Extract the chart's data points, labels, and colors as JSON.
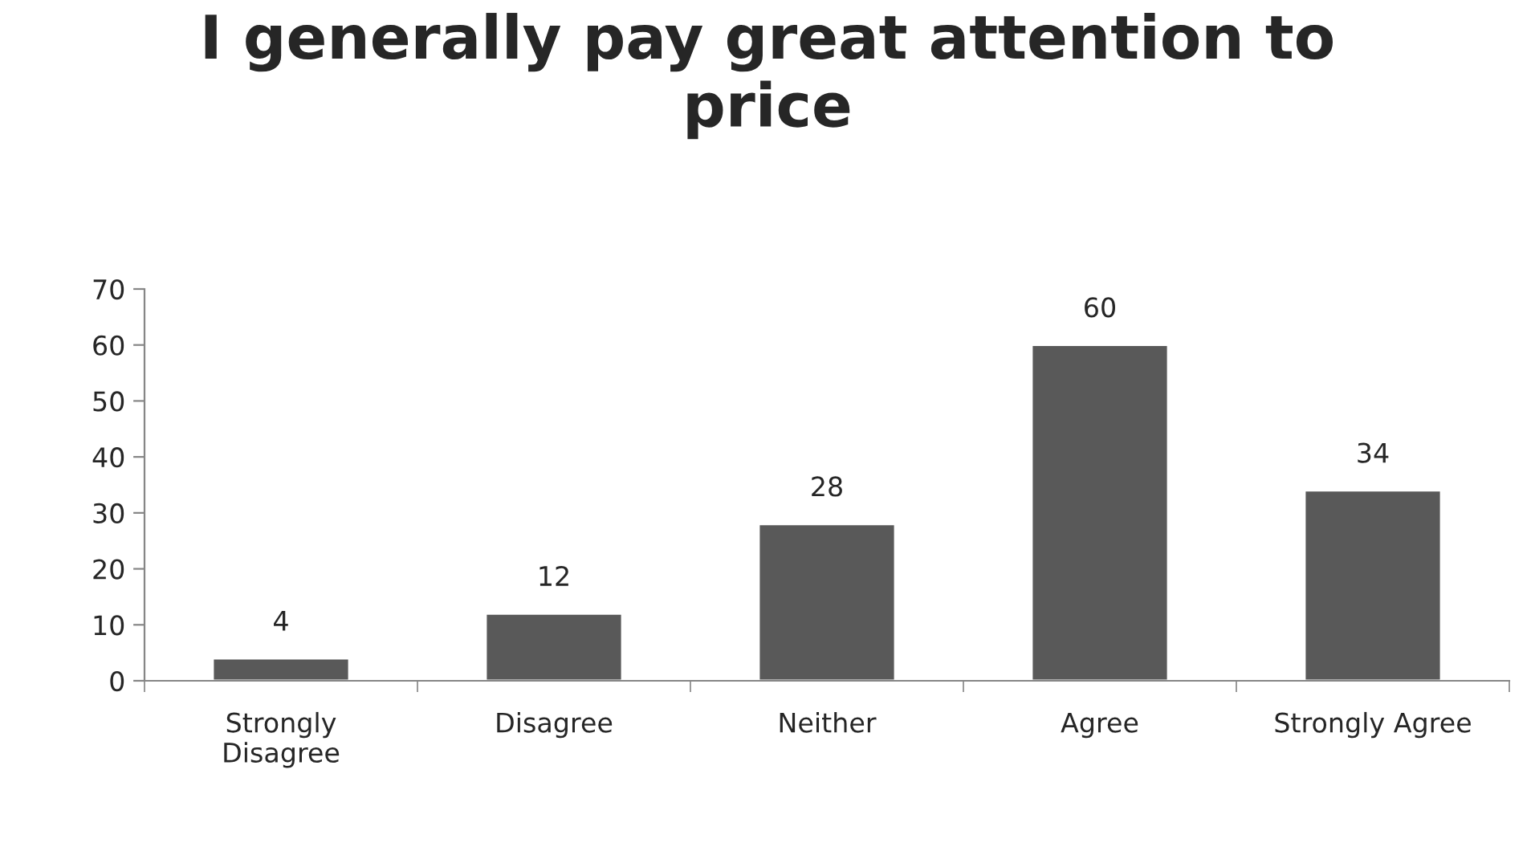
{
  "chart_data": {
    "type": "bar",
    "title": "I generally pay great attention to price",
    "categories": [
      "Strongly Disagree",
      "Disagree",
      "Neither",
      "Agree",
      "Strongly Agree"
    ],
    "values": [
      4,
      12,
      28,
      60,
      34
    ],
    "color": "#595959",
    "ylim": [
      0,
      70
    ],
    "yticks": [
      0,
      10,
      20,
      30,
      40,
      50,
      60,
      70
    ],
    "grid": false,
    "data_labels": true
  }
}
